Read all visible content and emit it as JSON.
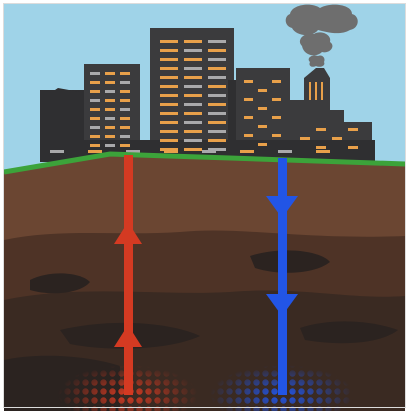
{
  "illustration": {
    "subject": "geothermal-city",
    "colors": {
      "sky": "#9fd3e8",
      "ground_line": "#3ca33a",
      "soil_top": "#6b4632",
      "soil_mid": "#4e3326",
      "soil_deep": "#3a2a22",
      "rock": "#2b2320",
      "buildings": "#3b3b3d",
      "buildings_dark": "#2f2f31",
      "windows": "#e8a04a",
      "windows_grey": "#a9a9ab",
      "smoke": "#6e6e6e",
      "hot_pipe": "#d43a22",
      "cold_pipe": "#2255e6"
    },
    "pipes": [
      {
        "name": "injection-well",
        "temperature": "hot",
        "flow": "up"
      },
      {
        "name": "production-well",
        "temperature": "cold",
        "flow": "down"
      }
    ],
    "icons": [
      "factory-chimney-icon",
      "smoke-cloud-icon",
      "arrow-up-icon",
      "arrow-down-icon"
    ]
  }
}
